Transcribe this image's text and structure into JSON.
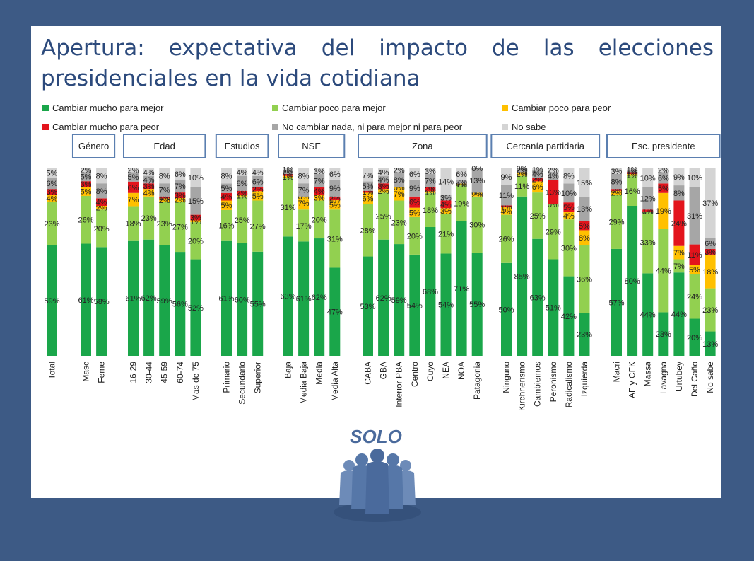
{
  "slide": {
    "title": "Apertura: expectativa del impacto de las elecciones presidenciales en la vida cotidiana"
  },
  "logo": {
    "text": "SOLO"
  },
  "chart_data": {
    "type": "bar",
    "stacked": true,
    "title": "Apertura: expectativa del impacto de las elecciones presidenciales en la vida cotidiana",
    "ylim": [
      0,
      100
    ],
    "grid": false,
    "legend_position": "top",
    "unit": "%",
    "series": [
      {
        "name": "Cambiar mucho para mejor",
        "color": "#1aa64a"
      },
      {
        "name": "Cambiar poco para mejor",
        "color": "#92d050"
      },
      {
        "name": "Cambiar poco para peor",
        "color": "#ffc000"
      },
      {
        "name": "Cambiar mucho para peor",
        "color": "#e3141c"
      },
      {
        "name": "No cambiar nada, ni para mejor ni para peor",
        "color": "#a6a6a6"
      },
      {
        "name": "No sabe",
        "color": "#d4d4d4"
      }
    ],
    "groups": [
      {
        "label": "",
        "categories": [
          {
            "name": "Total",
            "values": [
              59,
              23,
              4,
              3,
              6,
              5
            ]
          }
        ]
      },
      {
        "label": "Género",
        "categories": [
          {
            "name": "Masc",
            "values": [
              61,
              26,
              5,
              3,
              5,
              2
            ]
          },
          {
            "name": "Feme",
            "values": [
              58,
              20,
              2,
              4,
              8,
              8
            ]
          }
        ]
      },
      {
        "label": "Edad",
        "categories": [
          {
            "name": "16-29",
            "values": [
              61,
              18,
              7,
              6,
              5,
              2
            ]
          },
          {
            "name": "30-44",
            "values": [
              62,
              23,
              4,
              3,
              4,
              4
            ]
          },
          {
            "name": "45-59",
            "values": [
              59,
              23,
              2,
              1,
              7,
              8
            ]
          },
          {
            "name": "60-74",
            "values": [
              56,
              27,
              2,
              3,
              7,
              6
            ]
          },
          {
            "name": "Mas de 75",
            "values": [
              52,
              20,
              1,
              3,
              15,
              10
            ]
          }
        ]
      },
      {
        "label": "Estudios",
        "categories": [
          {
            "name": "Primario",
            "values": [
              61,
              16,
              5,
              4,
              5,
              8
            ]
          },
          {
            "name": "Secundario",
            "values": [
              60,
              25,
              1,
              2,
              8,
              4
            ]
          },
          {
            "name": "Superior",
            "values": [
              55,
              27,
              5,
              2,
              6,
              4
            ]
          }
        ]
      },
      {
        "label": "NSE",
        "categories": [
          {
            "name": "Baja",
            "values": [
              63,
              31,
              1,
              1,
              2,
              1
            ]
          },
          {
            "name": "Media Baja",
            "values": [
              61,
              17,
              7,
              0,
              7,
              8
            ]
          },
          {
            "name": "Media",
            "values": [
              62,
              20,
              3,
              4,
              7,
              3
            ]
          },
          {
            "name": "Media Alta",
            "values": [
              47,
              31,
              5,
              2,
              9,
              6
            ]
          }
        ]
      },
      {
        "label": "Zona",
        "categories": [
          {
            "name": "CABA",
            "values": [
              53,
              28,
              6,
              1,
              5,
              7
            ]
          },
          {
            "name": "GBA",
            "values": [
              62,
              25,
              2,
              3,
              4,
              4
            ]
          },
          {
            "name": "Interior PBA",
            "values": [
              59,
              23,
              7,
              0,
              8,
              2
            ]
          },
          {
            "name": "Centro",
            "values": [
              54,
              20,
              5,
              6,
              9,
              6
            ]
          },
          {
            "name": "Cuyo",
            "values": [
              68,
              18,
              1,
              2,
              7,
              3
            ]
          },
          {
            "name": "NEA",
            "values": [
              54,
              21,
              3,
              4,
              3,
              14
            ]
          },
          {
            "name": "NOA",
            "values": [
              71,
              19,
              1,
              0,
              2,
              6
            ]
          },
          {
            "name": "Patagonia",
            "values": [
              55,
              30,
              2,
              0,
              13,
              0
            ]
          }
        ]
      },
      {
        "label": "Cercanía partidaria",
        "categories": [
          {
            "name": "Ninguno",
            "values": [
              50,
              26,
              4,
              1,
              11,
              9
            ]
          },
          {
            "name": "Kirchnerismo",
            "values": [
              85,
              11,
              2,
              0,
              2,
              0
            ]
          },
          {
            "name": "Cambiemos",
            "values": [
              63,
              25,
              6,
              2,
              4,
              1
            ]
          },
          {
            "name": "Peronismo",
            "values": [
              51,
              29,
              0,
              13,
              4,
              2
            ]
          },
          {
            "name": "Radicalismo",
            "values": [
              42,
              30,
              4,
              5,
              10,
              8
            ]
          },
          {
            "name": "Izquierda",
            "values": [
              23,
              36,
              8,
              5,
              13,
              15
            ]
          }
        ]
      },
      {
        "label": "Esc. presidente",
        "categories": [
          {
            "name": "Macri",
            "values": [
              57,
              29,
              2,
              1,
              8,
              3
            ]
          },
          {
            "name": "AF y CFK",
            "values": [
              80,
              16,
              1,
              1,
              1,
              1
            ]
          },
          {
            "name": "Massa",
            "values": [
              44,
              33,
              0,
              1,
              12,
              10
            ]
          },
          {
            "name": "Lavagna",
            "values": [
              23,
              44,
              19,
              5,
              6,
              2
            ]
          },
          {
            "name": "Urtubey",
            "values": [
              44,
              7,
              7,
              24,
              8,
              9
            ]
          },
          {
            "name": "Del Caño",
            "values": [
              20,
              24,
              5,
              11,
              31,
              10
            ]
          },
          {
            "name": "No sabe",
            "values": [
              13,
              23,
              18,
              3,
              6,
              37
            ]
          }
        ]
      }
    ]
  }
}
